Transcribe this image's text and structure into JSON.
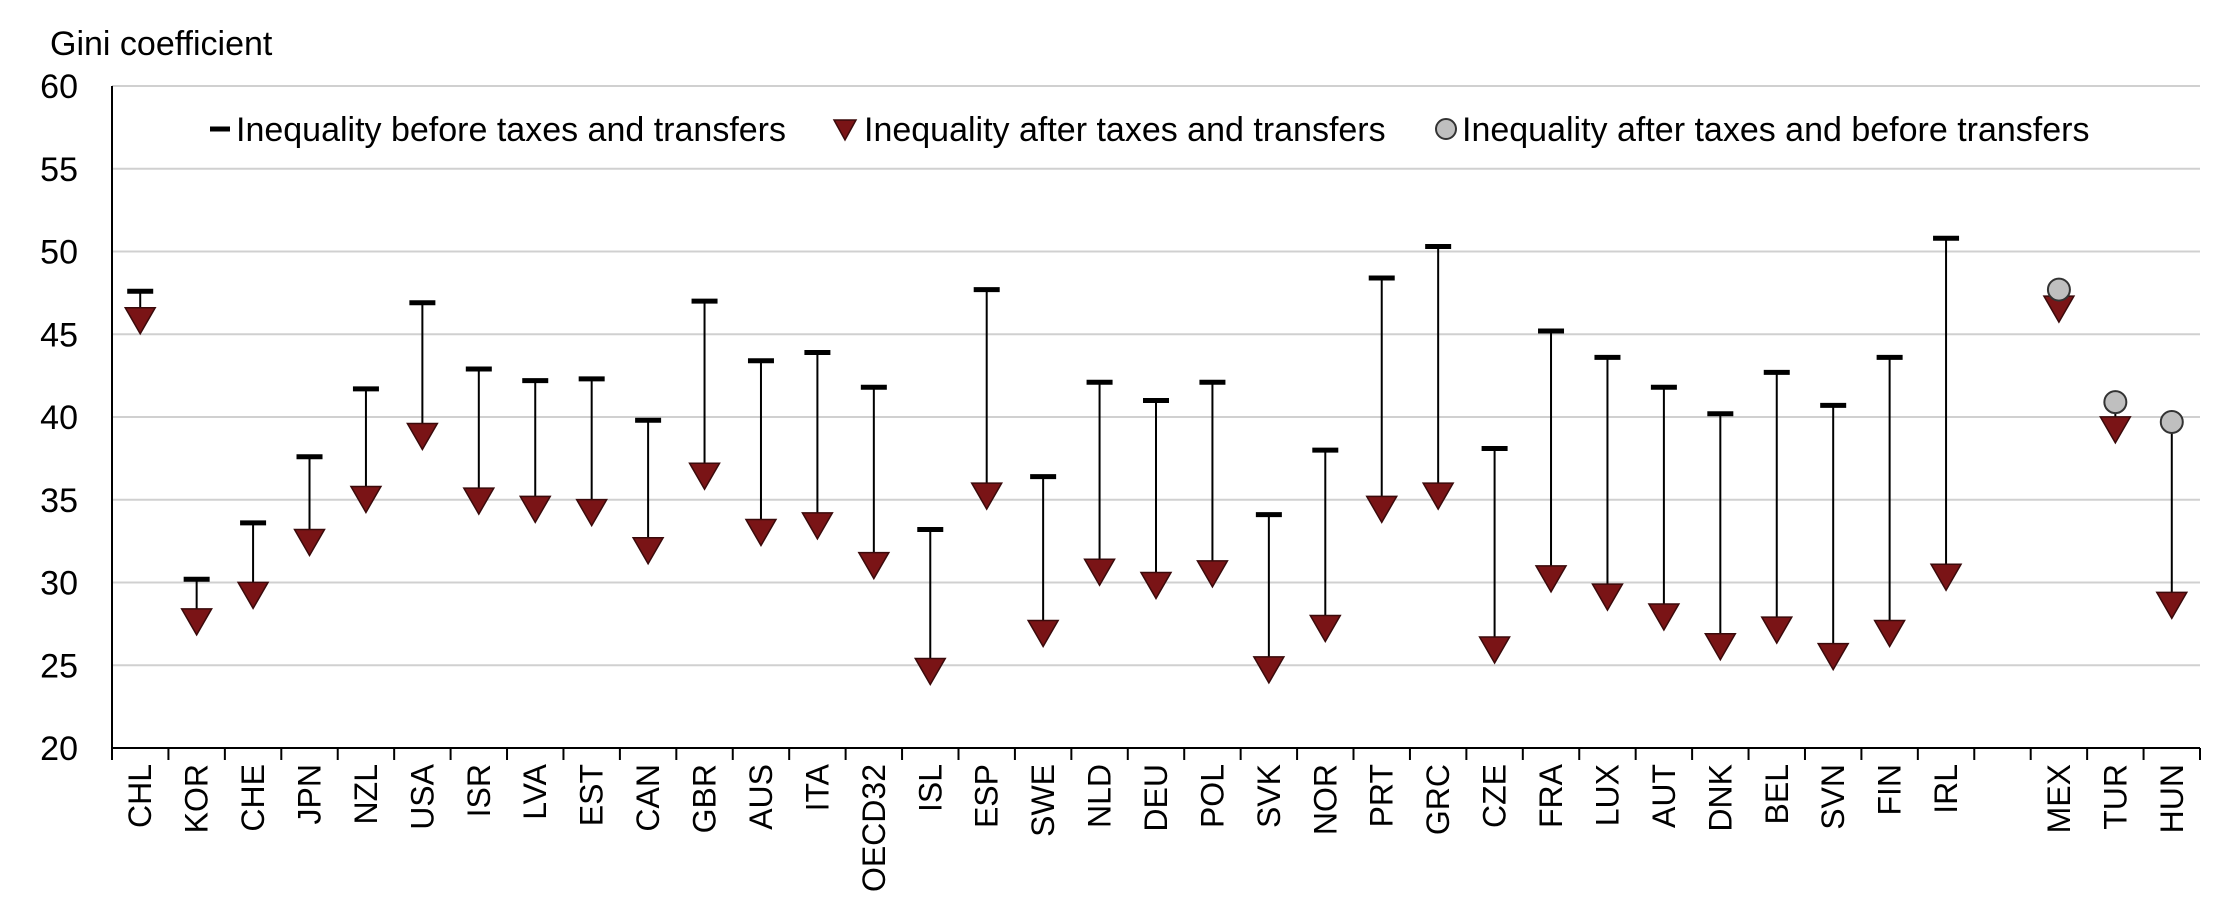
{
  "chart_data": {
    "type": "scatter",
    "ylabel": "Gini coefficient",
    "ylim": [
      20,
      60
    ],
    "yticks": [
      20,
      25,
      30,
      35,
      40,
      45,
      50,
      55,
      60
    ],
    "grid": true,
    "legend_placement": "top",
    "legend": [
      {
        "label": "Inequality before taxes and transfers",
        "marker": "dash",
        "color": "#000000"
      },
      {
        "label": "Inequality after taxes and transfers",
        "marker": "triangle-down",
        "color": "#7a1416"
      },
      {
        "label": "Inequality after taxes and before transfers",
        "marker": "circle",
        "color": "#bfbfbf"
      }
    ],
    "categories": [
      "CHL",
      "KOR",
      "CHE",
      "JPN",
      "NZL",
      "USA",
      "ISR",
      "LVA",
      "EST",
      "CAN",
      "GBR",
      "AUS",
      "ITA",
      "OECD32",
      "ISL",
      "ESP",
      "SWE",
      "NLD",
      "DEU",
      "POL",
      "SVK",
      "NOR",
      "PRT",
      "GRC",
      "CZE",
      "FRA",
      "LUX",
      "AUT",
      "DNK",
      "BEL",
      "SVN",
      "FIN",
      "IRL",
      "",
      "MEX",
      "TUR",
      "HUN"
    ],
    "series": [
      {
        "name": "Inequality before taxes and transfers",
        "values": [
          47.6,
          30.2,
          33.6,
          37.6,
          41.7,
          46.9,
          42.9,
          42.2,
          42.3,
          39.8,
          47.0,
          43.4,
          43.9,
          41.8,
          33.2,
          47.7,
          36.4,
          42.1,
          41.0,
          42.1,
          34.1,
          38.0,
          48.4,
          50.3,
          38.1,
          45.2,
          43.6,
          41.8,
          40.2,
          42.7,
          40.7,
          43.6,
          50.8,
          null,
          null,
          null,
          null
        ]
      },
      {
        "name": "Inequality after taxes and transfers",
        "values": [
          46.0,
          27.8,
          29.4,
          32.6,
          35.2,
          39.0,
          35.1,
          34.6,
          34.4,
          32.1,
          36.6,
          33.2,
          33.6,
          31.2,
          24.8,
          35.4,
          27.1,
          30.8,
          30.0,
          30.7,
          24.9,
          27.4,
          34.6,
          35.4,
          26.1,
          30.4,
          29.3,
          28.1,
          26.3,
          27.3,
          25.7,
          27.1,
          30.5,
          null,
          46.7,
          39.4,
          28.8
        ]
      },
      {
        "name": "Inequality after taxes and before transfers",
        "values": [
          null,
          null,
          null,
          null,
          null,
          null,
          null,
          null,
          null,
          null,
          null,
          null,
          null,
          null,
          null,
          null,
          null,
          null,
          null,
          null,
          null,
          null,
          null,
          null,
          null,
          null,
          null,
          null,
          null,
          null,
          null,
          null,
          null,
          null,
          47.7,
          40.9,
          39.7
        ]
      }
    ]
  }
}
